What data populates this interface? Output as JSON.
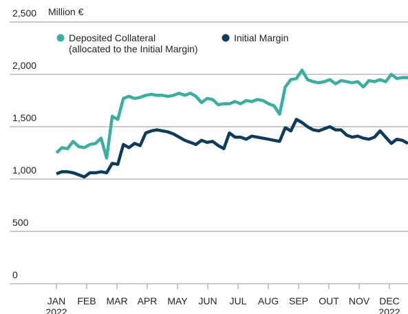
{
  "chart_data": {
    "type": "line",
    "y_label": "Million €",
    "ylim": [
      0,
      2500
    ],
    "yticks": [
      0,
      500,
      {
        "value": 1000,
        "label": "1,000"
      },
      {
        "value": 1500,
        "label": "1,500"
      },
      {
        "value": 2000,
        "label": "2,000"
      },
      {
        "value": 2500,
        "label": "2,500"
      }
    ],
    "grid": true,
    "xticks": [
      "JAN\n2022",
      "FEB",
      "MAR",
      "APR",
      "MAY",
      "JUN",
      "JUL",
      "AUG",
      "SEP",
      "OUT",
      "NOV",
      "DEC\n2022"
    ],
    "legend": "top-left",
    "series": [
      {
        "name": "Deposited Collateral\n(allocated to the Initial Margin)",
        "color": "#3aafa0",
        "values": [
          1250,
          1300,
          1290,
          1360,
          1310,
          1300,
          1330,
          1340,
          1390,
          1200,
          1600,
          1570,
          1770,
          1790,
          1770,
          1780,
          1800,
          1810,
          1800,
          1800,
          1790,
          1800,
          1820,
          1800,
          1820,
          1790,
          1730,
          1770,
          1760,
          1710,
          1720,
          1720,
          1740,
          1720,
          1750,
          1740,
          1760,
          1750,
          1720,
          1700,
          1620,
          1880,
          1950,
          1960,
          2040,
          1950,
          1930,
          1920,
          1930,
          1950,
          1910,
          1940,
          1930,
          1920,
          1930,
          1880,
          1940,
          1930,
          1950,
          1930,
          2000,
          1960,
          1970,
          1970
        ]
      },
      {
        "name": "Initial Margin",
        "color": "#0d3b5c",
        "values": [
          1050,
          1070,
          1070,
          1060,
          1040,
          1020,
          1060,
          1060,
          1070,
          1060,
          1150,
          1140,
          1330,
          1300,
          1340,
          1320,
          1440,
          1460,
          1470,
          1460,
          1450,
          1430,
          1400,
          1370,
          1350,
          1330,
          1370,
          1350,
          1360,
          1320,
          1290,
          1440,
          1400,
          1400,
          1380,
          1410,
          1400,
          1390,
          1380,
          1370,
          1360,
          1490,
          1460,
          1570,
          1540,
          1500,
          1470,
          1460,
          1480,
          1500,
          1470,
          1470,
          1420,
          1400,
          1410,
          1390,
          1380,
          1400,
          1460,
          1400,
          1340,
          1380,
          1370,
          1340
        ]
      }
    ]
  }
}
